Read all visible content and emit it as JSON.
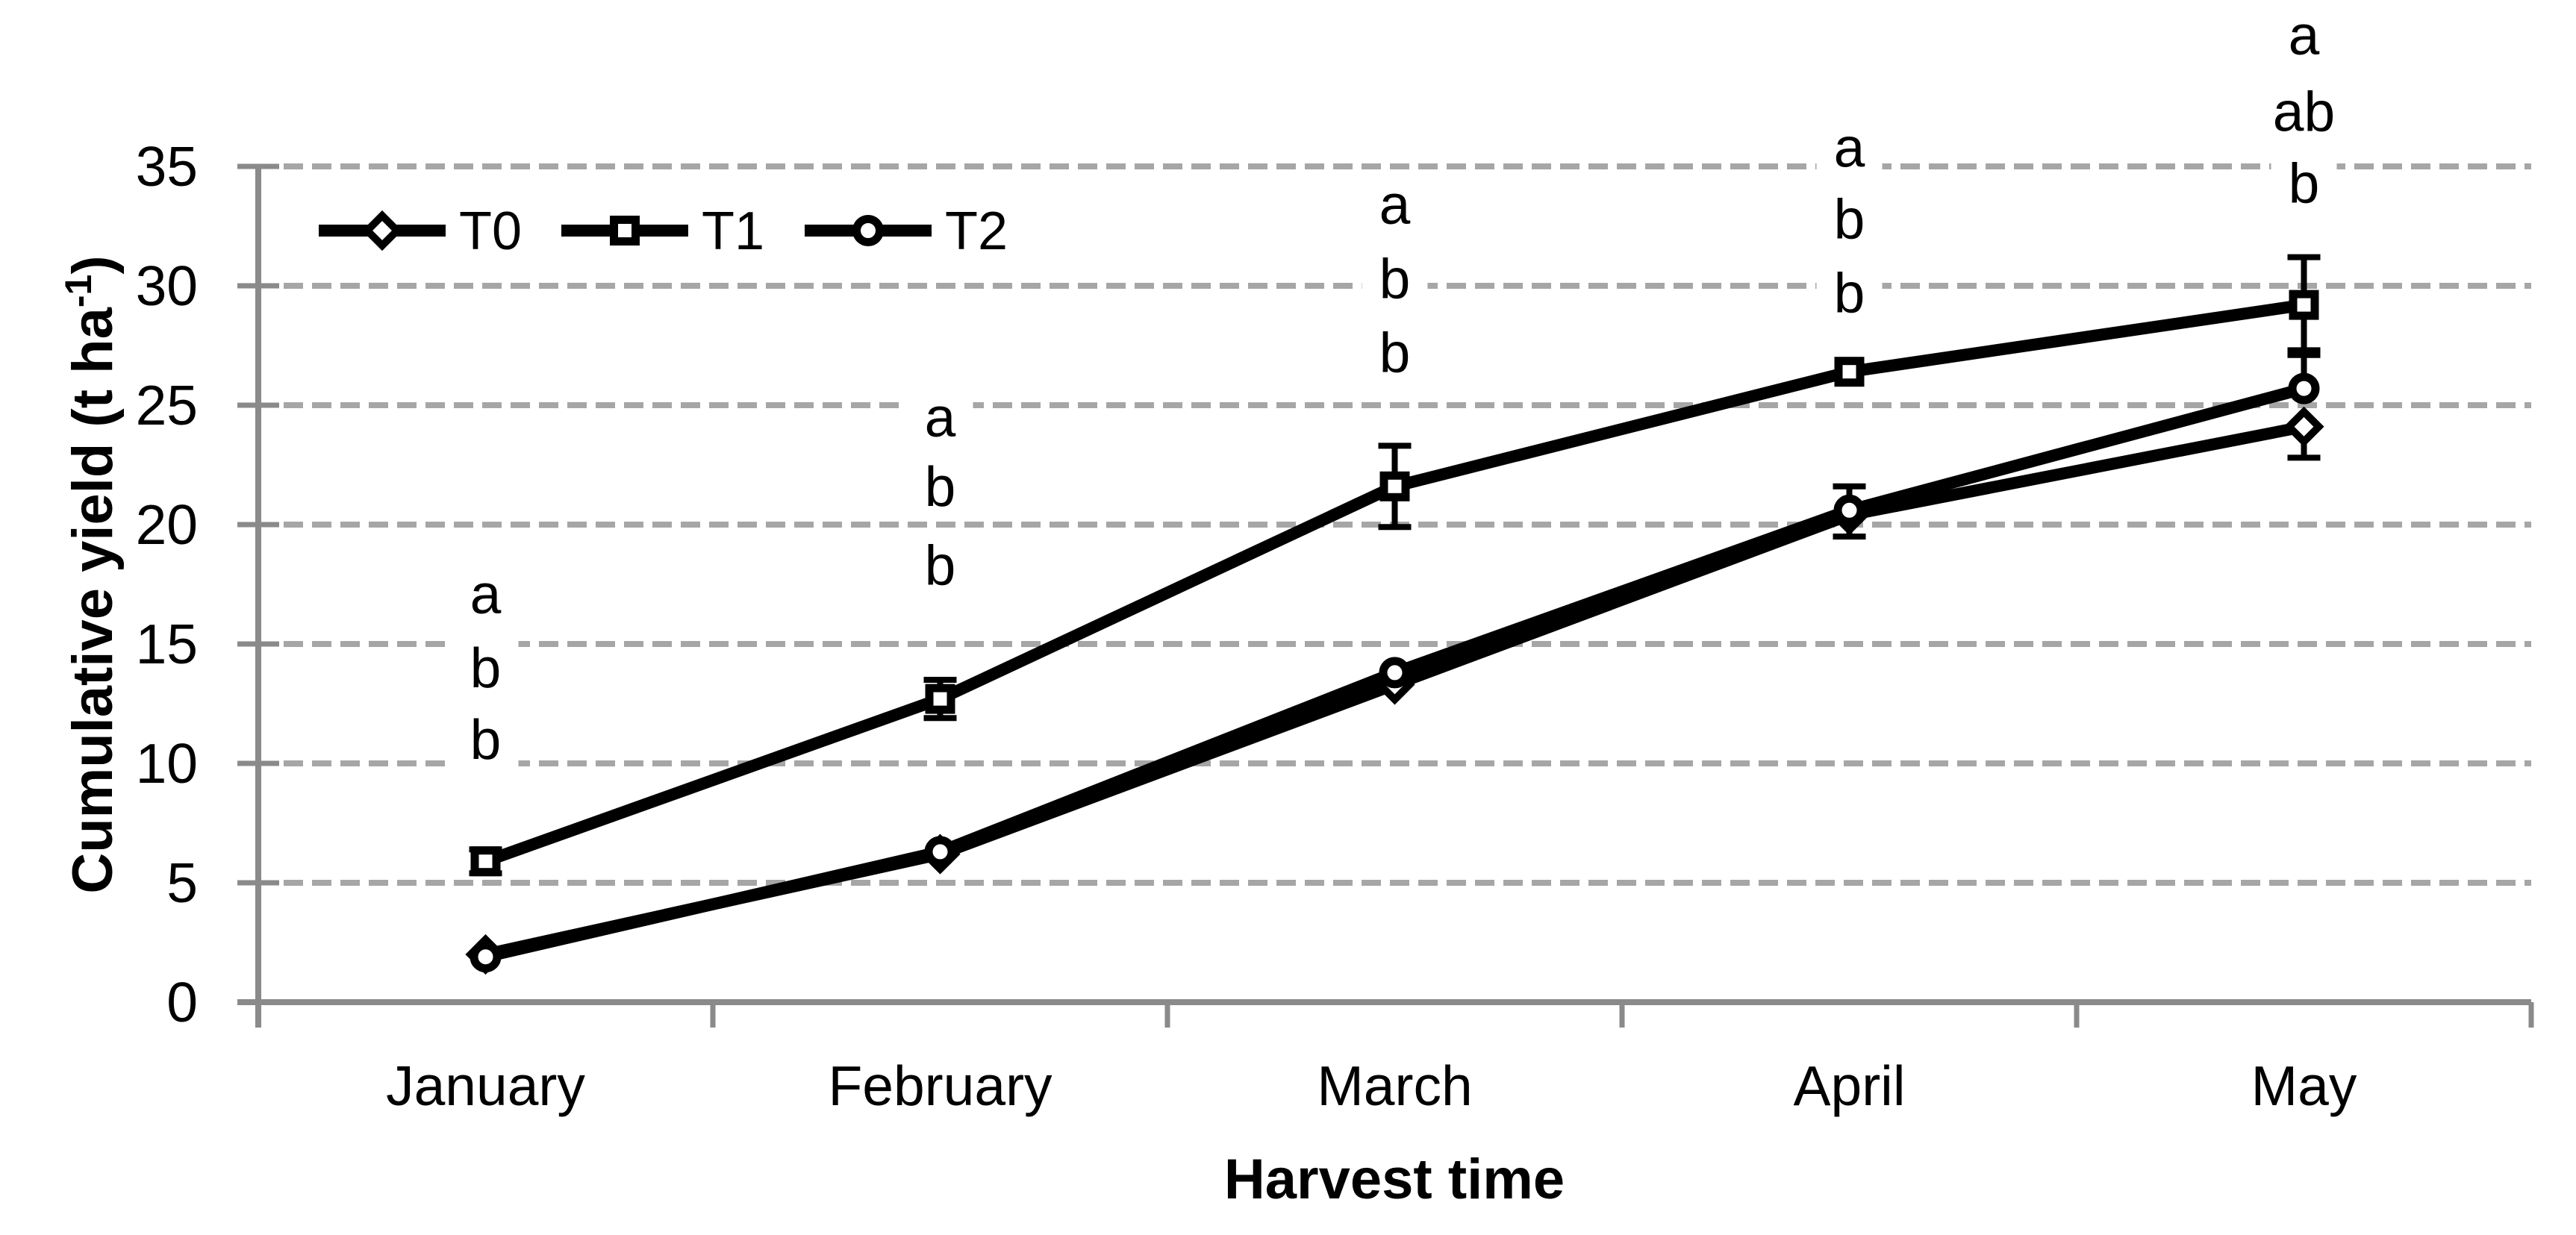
{
  "figure": {
    "background_color": "#ffffff",
    "axis_color": "#8a8a8a",
    "gridline_color": "#a6a6a6",
    "series_color": "#000000",
    "text_color": "#000000"
  },
  "chart_data": {
    "type": "line",
    "title": "",
    "xlabel": "Harvest time",
    "ylabel": "Cumulative yield (t ha-1)",
    "ylabel_parts": {
      "text": "Cumulative yield (t ha",
      "superscript": "-1",
      "close": ")"
    },
    "categories": [
      "January",
      "February",
      "March",
      "April",
      "May"
    ],
    "ylim": [
      0,
      35
    ],
    "yticks": [
      0,
      5,
      10,
      15,
      20,
      25,
      30,
      35
    ],
    "grid": "horizontal-dashed",
    "legend_position": "top-left-inside",
    "series": [
      {
        "name": "T0",
        "marker": "diamond",
        "values": [
          2.0,
          6.2,
          13.3,
          20.4,
          24.1
        ],
        "err_up": [
          0,
          0,
          0,
          0,
          0
        ],
        "err_down": [
          0,
          0,
          0,
          0,
          1.3
        ]
      },
      {
        "name": "T1",
        "marker": "square",
        "values": [
          5.9,
          12.7,
          21.6,
          26.4,
          29.2
        ],
        "err_up": [
          0.5,
          0.8,
          1.7,
          0,
          2.0
        ],
        "err_down": [
          0.5,
          0.8,
          1.7,
          0,
          1.9
        ]
      },
      {
        "name": "T2",
        "marker": "circle",
        "values": [
          1.9,
          6.3,
          13.8,
          20.6,
          25.7
        ],
        "err_up": [
          0,
          0,
          0,
          1.0,
          1.4
        ],
        "err_down": [
          0,
          0,
          0,
          1.1,
          0
        ]
      }
    ],
    "significance_letters": [
      {
        "month": "January",
        "letters": [
          "a",
          "b",
          "b"
        ],
        "y_values": [
          17.1,
          14.0,
          11.0
        ]
      },
      {
        "month": "February",
        "letters": [
          "a",
          "b",
          "b"
        ],
        "y_values": [
          24.5,
          21.6,
          18.3
        ]
      },
      {
        "month": "March",
        "letters": [
          "a",
          "b",
          "b"
        ],
        "y_values": [
          33.4,
          30.3,
          27.2
        ]
      },
      {
        "month": "April",
        "letters": [
          "a",
          "b",
          "b"
        ],
        "y_values": [
          35.8,
          32.8,
          29.7
        ]
      },
      {
        "month": "May",
        "letters": [
          "a",
          "ab",
          "b"
        ],
        "y_values": [
          40.5,
          37.3,
          34.3
        ]
      }
    ]
  }
}
